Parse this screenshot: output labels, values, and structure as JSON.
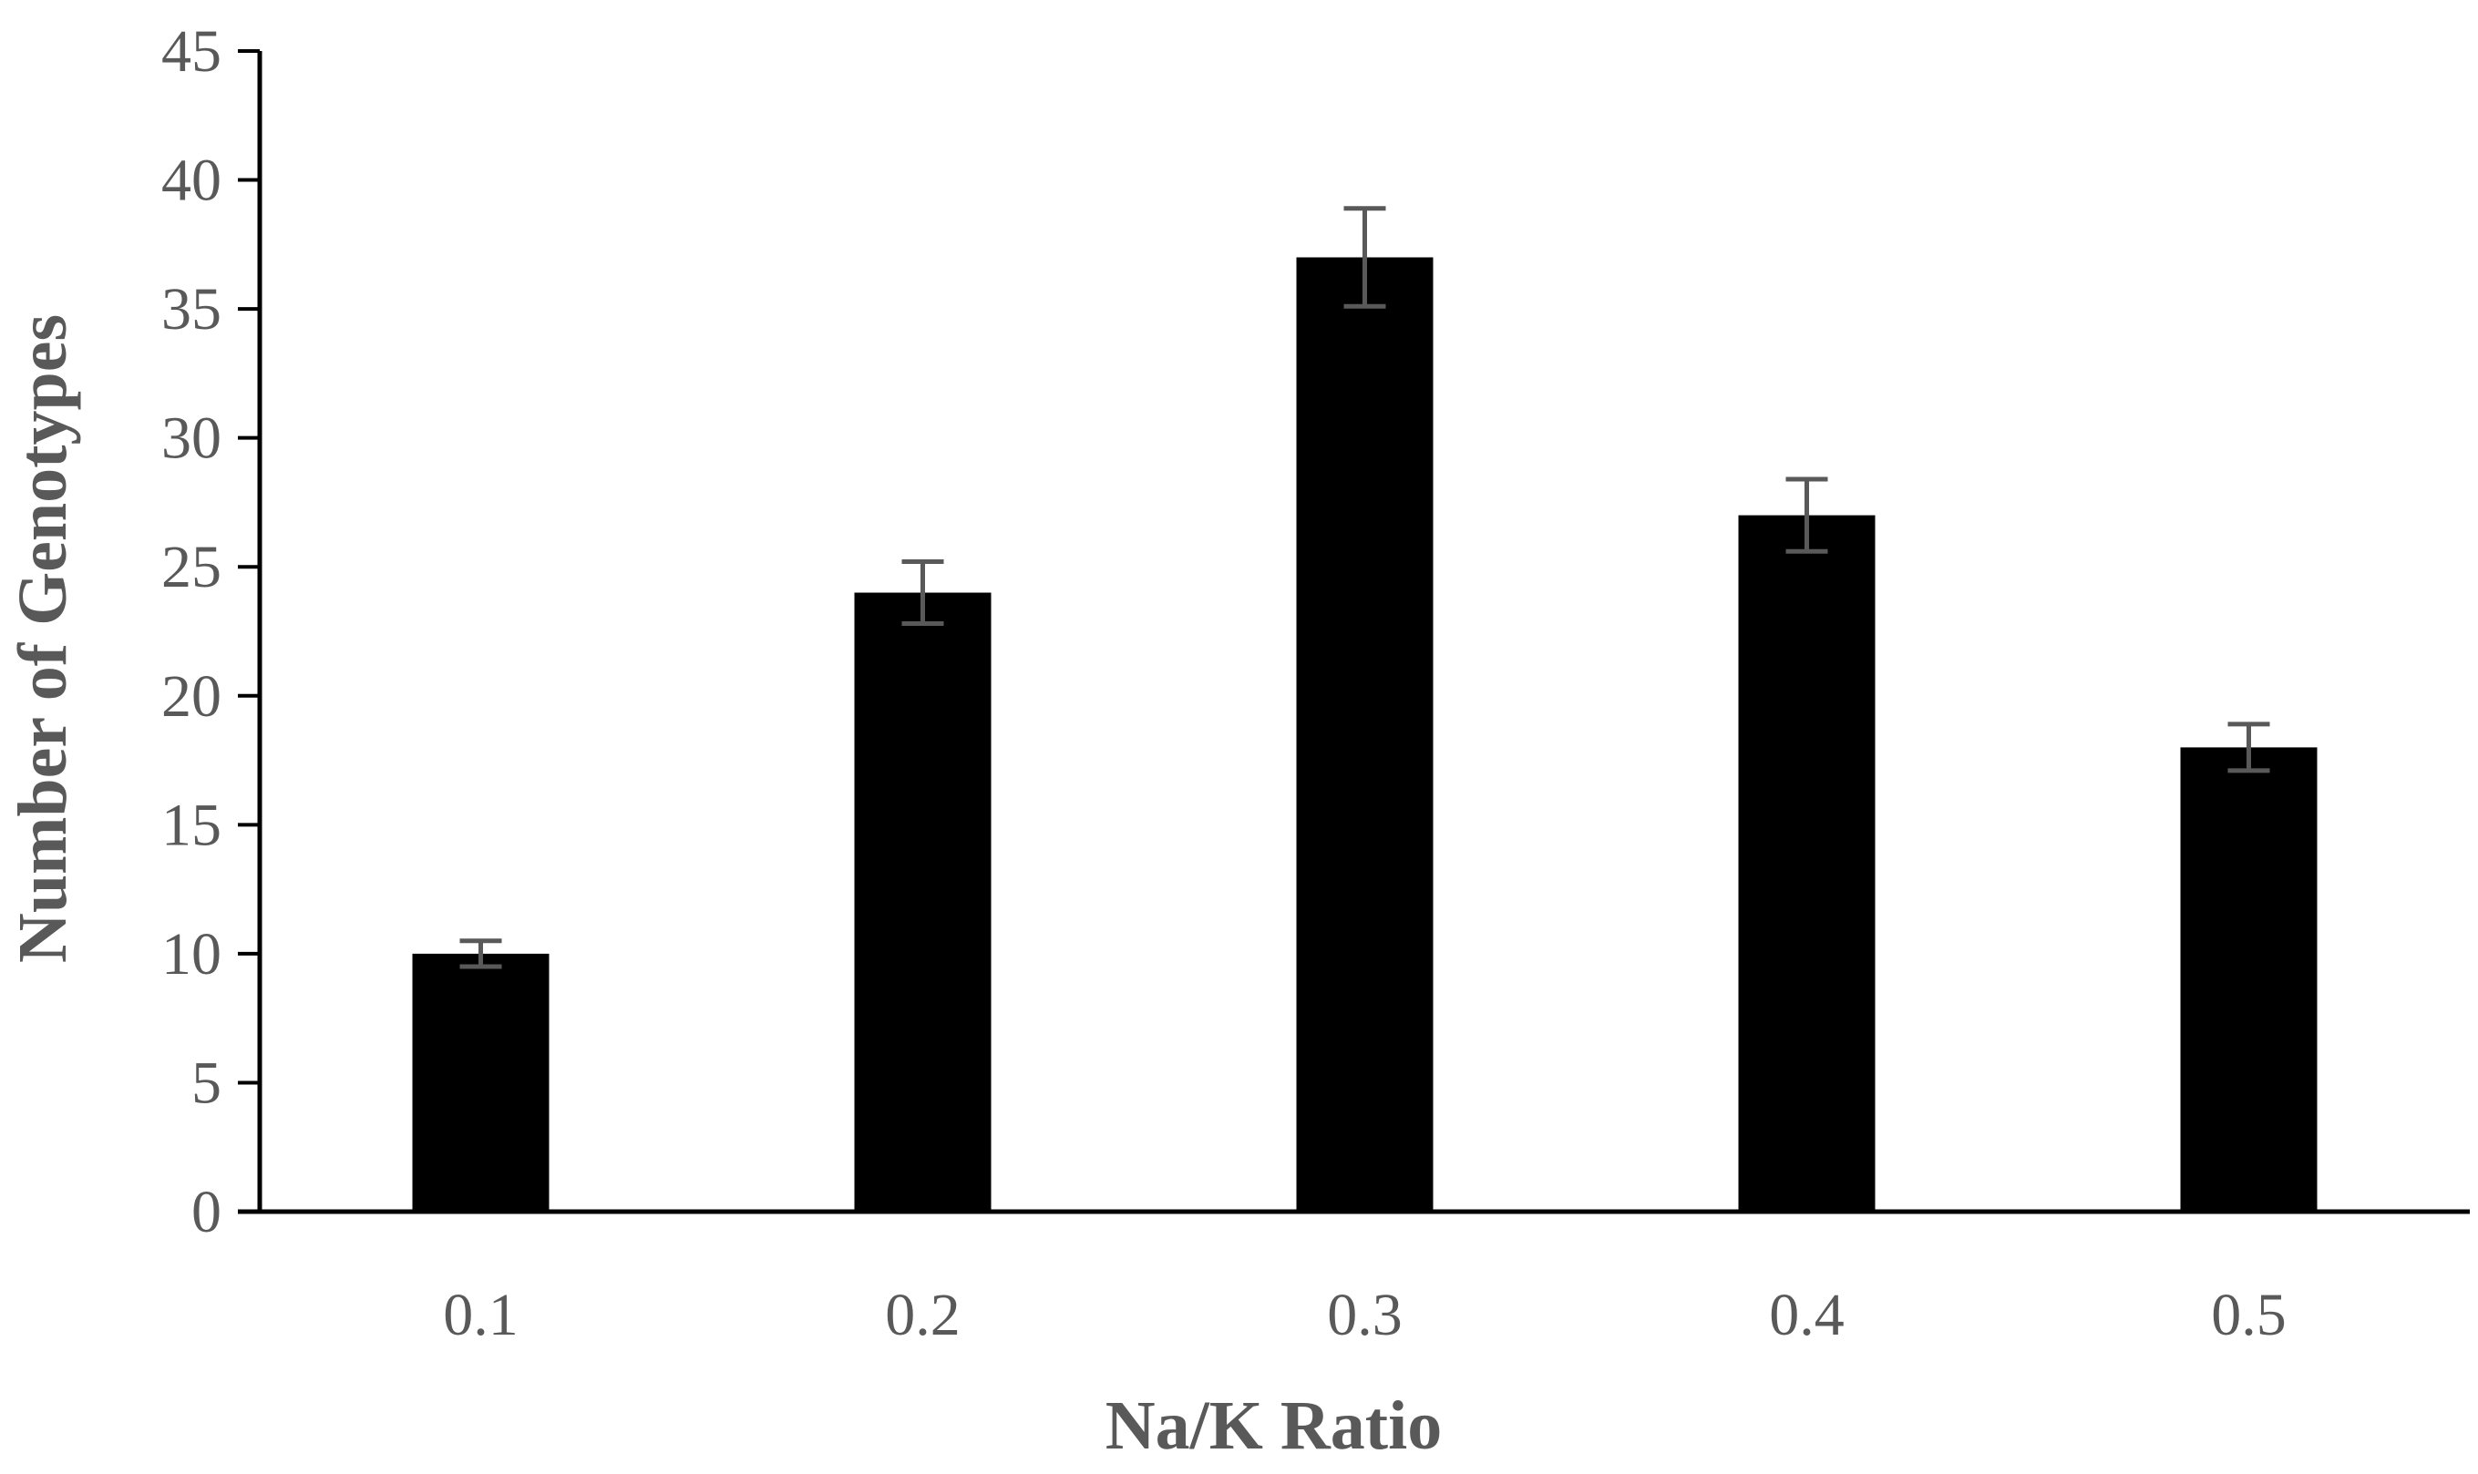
{
  "chart_data": {
    "type": "bar",
    "title": "",
    "xlabel": "Na/K Ratio",
    "ylabel": "Number of Genotypes",
    "categories": [
      "0.1",
      "0.2",
      "0.3",
      "0.4",
      "0.5"
    ],
    "values": [
      10,
      24,
      37,
      27,
      18
    ],
    "error_bars": [
      0.5,
      1.2,
      1.9,
      1.4,
      0.9
    ],
    "ylim": [
      0,
      45
    ],
    "yticks": [
      "0",
      "5",
      "10",
      "15",
      "20",
      "25",
      "30",
      "35",
      "40",
      "45"
    ],
    "grid": false,
    "legend": "none",
    "colors": {
      "bar": "#000000",
      "axis": "#000000",
      "error_bar": "#595959",
      "text": "#595959"
    }
  }
}
